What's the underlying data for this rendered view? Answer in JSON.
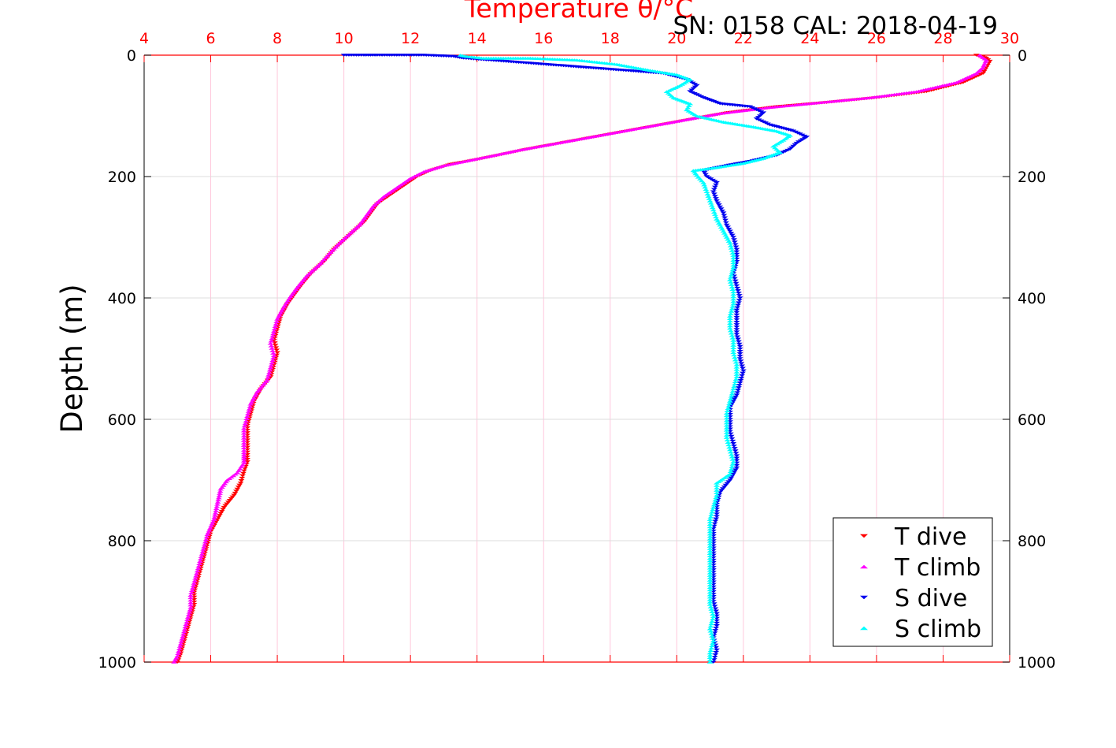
{
  "chart_data": {
    "type": "scatter",
    "title": "Temperature θ/°C",
    "header_note": "SN: 0158  CAL: 2018-04-19",
    "xlabel": "Temperature θ/°C",
    "ylabel": "Depth (m)",
    "xlim": [
      4,
      30
    ],
    "ylim": [
      1000,
      0
    ],
    "y_inverted": true,
    "x_axis_position": "top",
    "x_ticks": [
      4,
      6,
      8,
      10,
      12,
      14,
      16,
      18,
      20,
      22,
      24,
      26,
      28,
      30
    ],
    "y_ticks": [
      0,
      200,
      400,
      600,
      800,
      1000
    ],
    "grid": true,
    "legend_position": "bottom-right",
    "colors": {
      "axis_x": "#ff0000",
      "grid_x": "#ffc8dc",
      "grid_y": "#dcdcdc",
      "t_dive": "#ff0000",
      "t_climb": "#ff00ff",
      "s_dive": "#0000ee",
      "s_climb": "#00ffff"
    },
    "series": [
      {
        "name": "T dive",
        "marker": "triangle-down",
        "color": "#ff0000",
        "points": [
          [
            29.0,
            0
          ],
          [
            29.3,
            5
          ],
          [
            29.4,
            10
          ],
          [
            29.2,
            30
          ],
          [
            28.6,
            45
          ],
          [
            27.5,
            60
          ],
          [
            26.0,
            70
          ],
          [
            24.5,
            78
          ],
          [
            23.0,
            85
          ],
          [
            21.5,
            95
          ],
          [
            20.5,
            105
          ],
          [
            19.5,
            115
          ],
          [
            18.5,
            125
          ],
          [
            17.5,
            135
          ],
          [
            16.5,
            145
          ],
          [
            15.5,
            155
          ],
          [
            14.8,
            163
          ],
          [
            14.0,
            172
          ],
          [
            13.2,
            180
          ],
          [
            12.6,
            190
          ],
          [
            12.2,
            200
          ],
          [
            11.8,
            215
          ],
          [
            11.4,
            230
          ],
          [
            11.0,
            245
          ],
          [
            10.8,
            260
          ],
          [
            10.6,
            275
          ],
          [
            10.3,
            290
          ],
          [
            10.0,
            305
          ],
          [
            9.7,
            320
          ],
          [
            9.4,
            340
          ],
          [
            9.0,
            360
          ],
          [
            8.7,
            380
          ],
          [
            8.5,
            395
          ],
          [
            8.3,
            410
          ],
          [
            8.1,
            430
          ],
          [
            8.0,
            450
          ],
          [
            7.9,
            470
          ],
          [
            8.0,
            490
          ],
          [
            7.9,
            510
          ],
          [
            7.8,
            530
          ],
          [
            7.5,
            550
          ],
          [
            7.3,
            570
          ],
          [
            7.2,
            590
          ],
          [
            7.1,
            610
          ],
          [
            7.1,
            630
          ],
          [
            7.1,
            650
          ],
          [
            7.1,
            670
          ],
          [
            7.0,
            685
          ],
          [
            6.9,
            705
          ],
          [
            6.7,
            725
          ],
          [
            6.4,
            745
          ],
          [
            6.2,
            765
          ],
          [
            6.0,
            785
          ],
          [
            5.9,
            805
          ],
          [
            5.8,
            825
          ],
          [
            5.7,
            845
          ],
          [
            5.6,
            865
          ],
          [
            5.5,
            885
          ],
          [
            5.5,
            905
          ],
          [
            5.4,
            925
          ],
          [
            5.3,
            945
          ],
          [
            5.2,
            965
          ],
          [
            5.1,
            985
          ],
          [
            5.0,
            1000
          ]
        ]
      },
      {
        "name": "T climb",
        "marker": "triangle-up",
        "color": "#ff00ff",
        "points": [
          [
            29.1,
            0
          ],
          [
            29.3,
            8
          ],
          [
            29.2,
            20
          ],
          [
            29.0,
            30
          ],
          [
            28.4,
            45
          ],
          [
            27.2,
            60
          ],
          [
            25.8,
            70
          ],
          [
            24.3,
            78
          ],
          [
            22.8,
            86
          ],
          [
            21.3,
            96
          ],
          [
            20.3,
            106
          ],
          [
            19.3,
            116
          ],
          [
            18.3,
            126
          ],
          [
            17.3,
            136
          ],
          [
            16.3,
            146
          ],
          [
            15.3,
            156
          ],
          [
            14.6,
            164
          ],
          [
            13.8,
            173
          ],
          [
            13.0,
            182
          ],
          [
            12.4,
            192
          ],
          [
            12.0,
            203
          ],
          [
            11.6,
            218
          ],
          [
            11.2,
            233
          ],
          [
            10.9,
            248
          ],
          [
            10.7,
            263
          ],
          [
            10.5,
            278
          ],
          [
            10.2,
            293
          ],
          [
            9.9,
            308
          ],
          [
            9.6,
            325
          ],
          [
            9.3,
            343
          ],
          [
            8.9,
            363
          ],
          [
            8.6,
            383
          ],
          [
            8.4,
            398
          ],
          [
            8.2,
            415
          ],
          [
            8.0,
            435
          ],
          [
            7.9,
            455
          ],
          [
            7.8,
            475
          ],
          [
            7.9,
            495
          ],
          [
            7.8,
            515
          ],
          [
            7.7,
            535
          ],
          [
            7.4,
            555
          ],
          [
            7.2,
            575
          ],
          [
            7.1,
            595
          ],
          [
            7.0,
            615
          ],
          [
            7.0,
            635
          ],
          [
            7.0,
            655
          ],
          [
            7.0,
            672
          ],
          [
            6.8,
            688
          ],
          [
            6.5,
            700
          ],
          [
            6.3,
            715
          ],
          [
            6.2,
            740
          ],
          [
            6.1,
            765
          ],
          [
            5.9,
            790
          ],
          [
            5.8,
            810
          ],
          [
            5.7,
            830
          ],
          [
            5.6,
            850
          ],
          [
            5.5,
            870
          ],
          [
            5.4,
            890
          ],
          [
            5.4,
            910
          ],
          [
            5.3,
            930
          ],
          [
            5.2,
            950
          ],
          [
            5.1,
            970
          ],
          [
            5.0,
            990
          ],
          [
            4.9,
            1000
          ]
        ]
      },
      {
        "name": "S dive",
        "marker": "triangle-down",
        "color": "#0000ee",
        "points": [
          [
            10.0,
            0
          ],
          [
            10.6,
            0
          ],
          [
            11.0,
            0
          ],
          [
            12.4,
            0
          ],
          [
            13.3,
            2
          ],
          [
            13.6,
            5
          ],
          [
            19.6,
            30
          ],
          [
            20.3,
            40
          ],
          [
            20.6,
            50
          ],
          [
            20.4,
            60
          ],
          [
            20.8,
            70
          ],
          [
            21.3,
            80
          ],
          [
            22.2,
            85
          ],
          [
            22.6,
            95
          ],
          [
            22.4,
            105
          ],
          [
            22.8,
            115
          ],
          [
            23.5,
            125
          ],
          [
            23.9,
            135
          ],
          [
            23.6,
            145
          ],
          [
            23.4,
            155
          ],
          [
            23.0,
            165
          ],
          [
            22.2,
            175
          ],
          [
            21.5,
            182
          ],
          [
            20.8,
            190
          ],
          [
            20.9,
            200
          ],
          [
            21.2,
            210
          ],
          [
            21.1,
            225
          ],
          [
            21.2,
            240
          ],
          [
            21.4,
            260
          ],
          [
            21.5,
            280
          ],
          [
            21.7,
            300
          ],
          [
            21.8,
            320
          ],
          [
            21.8,
            340
          ],
          [
            21.7,
            360
          ],
          [
            21.8,
            380
          ],
          [
            21.9,
            400
          ],
          [
            21.8,
            420
          ],
          [
            21.8,
            440
          ],
          [
            21.8,
            460
          ],
          [
            21.9,
            480
          ],
          [
            21.9,
            500
          ],
          [
            22.0,
            520
          ],
          [
            21.9,
            540
          ],
          [
            21.8,
            560
          ],
          [
            21.6,
            580
          ],
          [
            21.6,
            600
          ],
          [
            21.6,
            620
          ],
          [
            21.7,
            640
          ],
          [
            21.8,
            660
          ],
          [
            21.8,
            680
          ],
          [
            21.6,
            700
          ],
          [
            21.3,
            720
          ],
          [
            21.2,
            740
          ],
          [
            21.2,
            760
          ],
          [
            21.1,
            780
          ],
          [
            21.1,
            800
          ],
          [
            21.1,
            820
          ],
          [
            21.1,
            840
          ],
          [
            21.1,
            860
          ],
          [
            21.1,
            880
          ],
          [
            21.1,
            900
          ],
          [
            21.2,
            920
          ],
          [
            21.2,
            940
          ],
          [
            21.1,
            960
          ],
          [
            21.2,
            980
          ],
          [
            21.1,
            1000
          ]
        ]
      },
      {
        "name": "S climb",
        "marker": "triangle-up",
        "color": "#00ffff",
        "points": [
          [
            13.5,
            0
          ],
          [
            13.7,
            2
          ],
          [
            14.2,
            5
          ],
          [
            15.6,
            5
          ],
          [
            17.0,
            8
          ],
          [
            18.2,
            15
          ],
          [
            19.2,
            25
          ],
          [
            20.0,
            32
          ],
          [
            20.4,
            40
          ],
          [
            20.1,
            50
          ],
          [
            19.7,
            60
          ],
          [
            19.9,
            70
          ],
          [
            20.4,
            80
          ],
          [
            20.3,
            90
          ],
          [
            20.6,
            100
          ],
          [
            21.4,
            110
          ],
          [
            22.3,
            118
          ],
          [
            23.0,
            125
          ],
          [
            23.4,
            132
          ],
          [
            23.2,
            140
          ],
          [
            22.9,
            150
          ],
          [
            23.1,
            160
          ],
          [
            22.6,
            170
          ],
          [
            22.0,
            178
          ],
          [
            21.2,
            185
          ],
          [
            20.5,
            190
          ],
          [
            20.6,
            198
          ],
          [
            20.8,
            210
          ],
          [
            20.9,
            225
          ],
          [
            21.0,
            240
          ],
          [
            21.1,
            255
          ],
          [
            21.2,
            270
          ],
          [
            21.4,
            290
          ],
          [
            21.6,
            310
          ],
          [
            21.7,
            330
          ],
          [
            21.7,
            350
          ],
          [
            21.6,
            370
          ],
          [
            21.7,
            390
          ],
          [
            21.7,
            410
          ],
          [
            21.6,
            430
          ],
          [
            21.6,
            450
          ],
          [
            21.7,
            470
          ],
          [
            21.7,
            490
          ],
          [
            21.8,
            510
          ],
          [
            21.8,
            530
          ],
          [
            21.7,
            550
          ],
          [
            21.6,
            570
          ],
          [
            21.5,
            590
          ],
          [
            21.5,
            610
          ],
          [
            21.5,
            630
          ],
          [
            21.6,
            650
          ],
          [
            21.7,
            670
          ],
          [
            21.6,
            690
          ],
          [
            21.2,
            705
          ],
          [
            21.2,
            725
          ],
          [
            21.1,
            745
          ],
          [
            21.0,
            765
          ],
          [
            21.0,
            785
          ],
          [
            21.0,
            805
          ],
          [
            21.0,
            825
          ],
          [
            21.0,
            845
          ],
          [
            21.0,
            865
          ],
          [
            21.0,
            885
          ],
          [
            21.0,
            905
          ],
          [
            21.1,
            925
          ],
          [
            21.0,
            945
          ],
          [
            21.1,
            965
          ],
          [
            21.0,
            985
          ],
          [
            21.0,
            1000
          ]
        ]
      }
    ]
  }
}
